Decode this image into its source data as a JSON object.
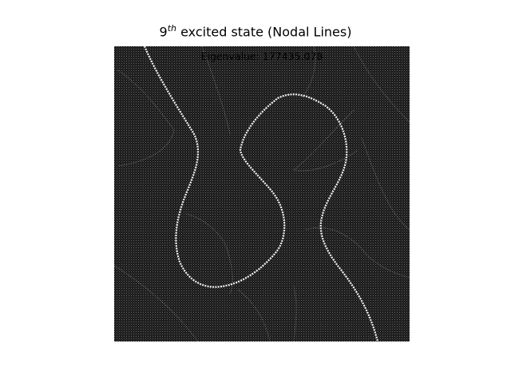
{
  "title": {
    "number": "9",
    "superscript": "th",
    "rest": " excited state (Nodal Lines)"
  },
  "annotation": "Eigenvalue: 177435.078",
  "chart_data": {
    "type": "heatmap",
    "title": "9th excited state (Nodal Lines)",
    "annotation": "Eigenvalue: 177435.078",
    "colormap": "gray",
    "axes_visible": false,
    "grid": false,
    "background": "#1a1a1a",
    "line_color": "#ffffff"
  }
}
